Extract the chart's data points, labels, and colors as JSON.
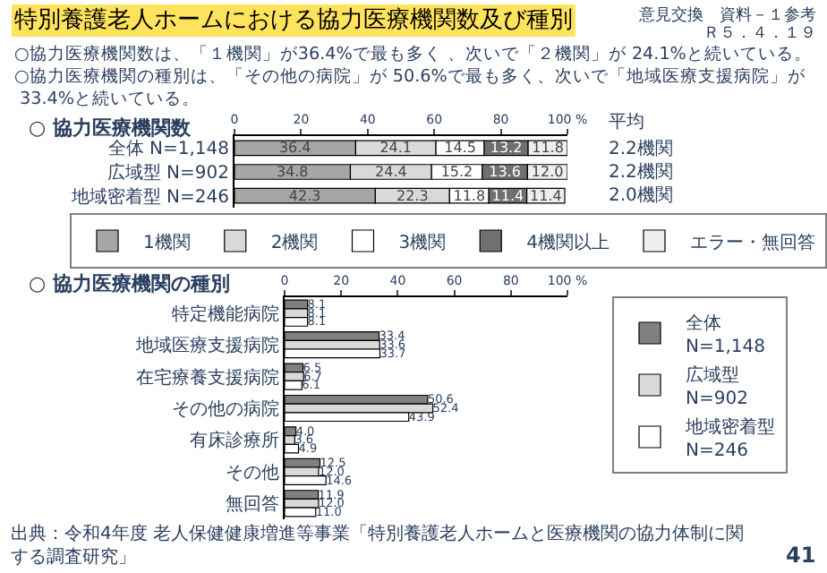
{
  "chart_data": [
    {
      "type": "bar",
      "orientation": "horizontal",
      "stacked": true,
      "title": "特別養護老人ホームにおける協力医療機関数及び種別",
      "subtitle": "○ 協力医療機関数",
      "categories": [
        "全体 N=1,148",
        "広域型 N=902",
        "地域密着型 N=246"
      ],
      "series": [
        {
          "name": "1機関",
          "color": "#a6a6a6",
          "values": [
            36.4,
            34.8,
            42.3
          ],
          "value_labels": [
            "36.4",
            "34.8",
            "42.3"
          ]
        },
        {
          "name": "2機関",
          "color": "#d9d9d9",
          "values": [
            24.1,
            24.4,
            22.3
          ],
          "value_labels": [
            "24.1",
            "24.4",
            "22.3"
          ]
        },
        {
          "name": "3機関",
          "color": "#ffffff",
          "values": [
            14.5,
            15.2,
            11.8
          ],
          "value_labels": [
            "14.5",
            "15.2",
            "11.8"
          ]
        },
        {
          "name": "4機関以上",
          "color": "#707070",
          "values": [
            13.2,
            13.6,
            11.4
          ],
          "value_labels": [
            "13.2",
            "13.6",
            "11.4"
          ]
        },
        {
          "name": "エラー・無回答",
          "color": "#eeeeee",
          "values": [
            11.8,
            12.0,
            11.4
          ],
          "value_labels": [
            "11.8",
            "12.0",
            "11.4"
          ]
        }
      ],
      "xlim": [
        0,
        100
      ],
      "xticks": [
        0,
        20,
        40,
        60,
        80,
        {
          "value": 100,
          "label": "100 %"
        }
      ],
      "legend": "bottom",
      "annotations": [
        "意見交換　資料－１参考",
        "Ｒ５．４．１９",
        "○協力医療機関数は、「１機関」が36.4%で最も多く 、次いで「２機関」が 24.1%と続いている。\n○協力医療機関の種別は、「その他の病院」が 50.6%で最も多く、次いで「地域医療支援病院」が 33.4%と続いている。",
        "平均",
        "2.2機関",
        "2.2機関",
        "2.0機関"
      ]
    },
    {
      "type": "bar",
      "orientation": "horizontal",
      "title": "○ 協力医療機関の種別",
      "categories": [
        "特定機能病院",
        "地域医療支援病院",
        "在宅療養支援病院",
        "その他の病院",
        "有床診療所",
        "その他",
        "無回答"
      ],
      "series": [
        {
          "name": "全体\nN=1,148",
          "color": "#808080",
          "values": [
            8.1,
            33.4,
            6.5,
            50.6,
            4.0,
            12.5,
            11.9
          ],
          "value_labels": [
            "8.1",
            "33.4",
            "6.5",
            "50.6",
            "4.0",
            "12.5",
            "11.9"
          ]
        },
        {
          "name": "広域型\nN=902",
          "color": "#d9d9d9",
          "values": [
            8.1,
            33.6,
            6.7,
            52.4,
            3.6,
            12.0,
            12.0
          ],
          "value_labels": [
            "8.1",
            "33.6",
            "6.7",
            "52.4",
            "3.6",
            "12.0",
            "12.0"
          ]
        },
        {
          "name": "地域密着型\nN=246",
          "color": "#ffffff",
          "values": [
            8.1,
            33.7,
            6.1,
            43.9,
            4.9,
            14.6,
            11.0
          ],
          "value_labels": [
            "8.1",
            "33.7",
            "6.1",
            "43.9",
            "4.9",
            "14.6",
            "11.0"
          ]
        }
      ],
      "xlim": [
        0,
        100
      ],
      "xticks": [
        0,
        20,
        40,
        60,
        80,
        {
          "value": 100,
          "label": "100 %"
        }
      ],
      "legend": "right",
      "annotations": [
        "出典：令和4年度 老人保健健康増進等事業「特別養護老人ホームと医療機関の協力体制に関する調査研究」",
        "41"
      ]
    }
  ]
}
